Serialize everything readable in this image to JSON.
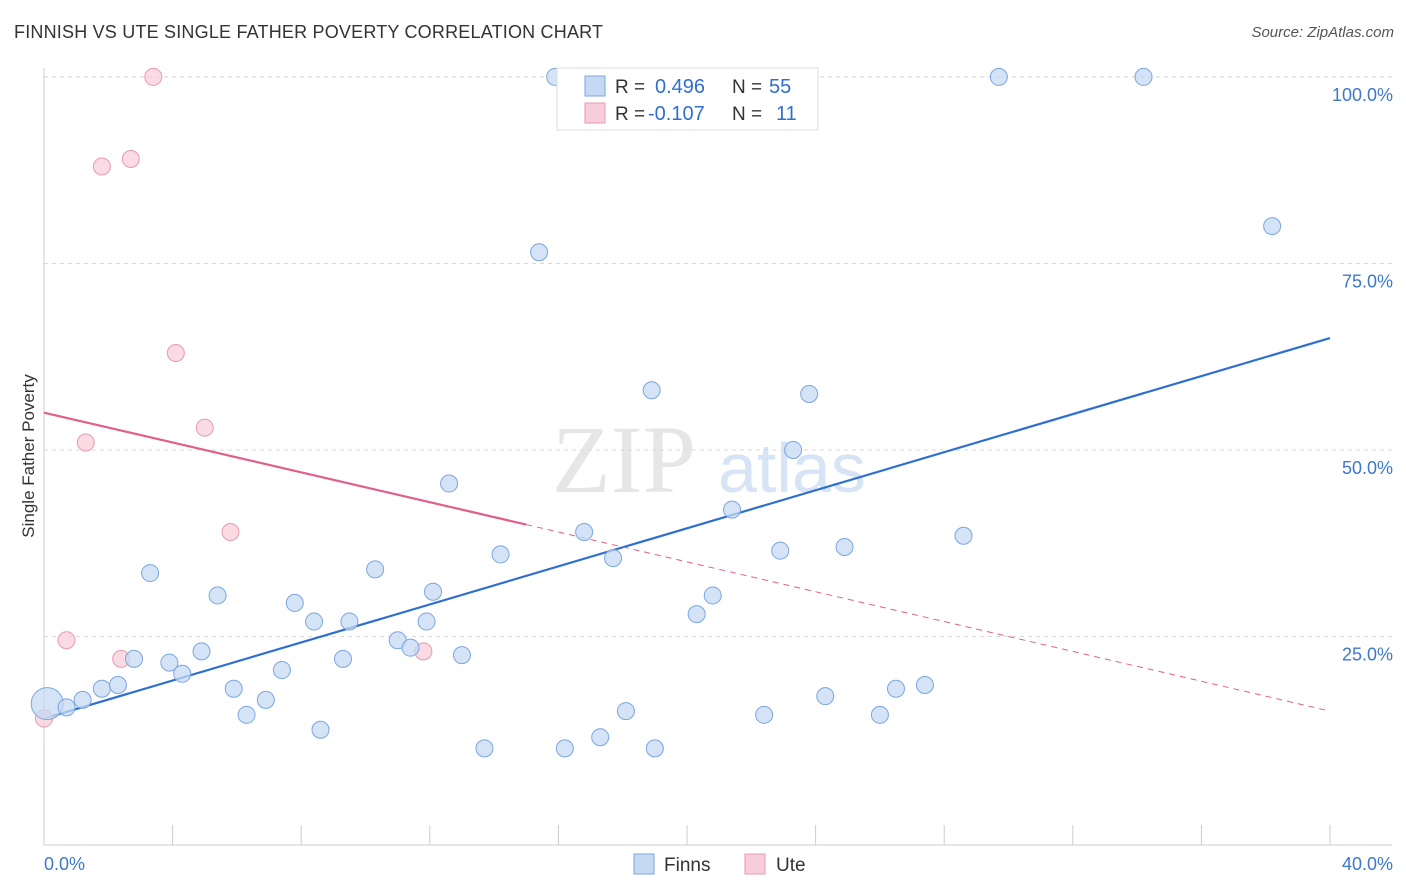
{
  "title": "FINNISH VS UTE SINGLE FATHER POVERTY CORRELATION CHART",
  "source": "Source: ZipAtlas.com",
  "watermark": {
    "zip": "ZIP",
    "atlas": "atlas"
  },
  "colors": {
    "finns_fill": "#c5d9f3",
    "finns_stroke": "#7aa6e0",
    "finns_line": "#2f6fd0",
    "ute_fill": "#f8cdd9",
    "ute_stroke": "#e89ab2",
    "ute_line": "#e0608a",
    "tick_label": "#3d78c9",
    "grid": "#d9d9d9"
  },
  "legend": {
    "r_label": "R =",
    "n_label": "N =",
    "rows": [
      {
        "r": "0.496",
        "n": "55"
      },
      {
        "r": "-0.107",
        "n": "11"
      }
    ]
  },
  "chart_data": {
    "type": "scatter",
    "title": "FINNISH VS UTE SINGLE FATHER POVERTY CORRELATION CHART",
    "xlabel": "",
    "ylabel": "Single Father Poverty",
    "xlim": [
      0,
      40
    ],
    "ylim": [
      0,
      102
    ],
    "x_tick_labels": [
      "0.0%",
      "40.0%"
    ],
    "y_ticks": [
      25,
      50,
      75,
      100
    ],
    "y_tick_labels": [
      "25.0%",
      "50.0%",
      "75.0%",
      "100.0%"
    ],
    "grid": true,
    "legend_position": "top-center",
    "series": [
      {
        "name": "Finns",
        "points": [
          [
            0.1,
            16.0
          ],
          [
            0.7,
            15.5
          ],
          [
            1.2,
            16.5
          ],
          [
            1.8,
            18.0
          ],
          [
            2.3,
            18.5
          ],
          [
            2.8,
            22.0
          ],
          [
            3.3,
            33.5
          ],
          [
            3.9,
            21.5
          ],
          [
            4.3,
            20.0
          ],
          [
            4.9,
            23.0
          ],
          [
            5.4,
            30.5
          ],
          [
            5.9,
            18.0
          ],
          [
            6.3,
            14.5
          ],
          [
            6.9,
            16.5
          ],
          [
            7.4,
            20.5
          ],
          [
            7.8,
            29.5
          ],
          [
            8.4,
            27.0
          ],
          [
            8.6,
            12.5
          ],
          [
            9.5,
            27.0
          ],
          [
            9.3,
            22.0
          ],
          [
            10.3,
            34.0
          ],
          [
            11.0,
            24.5
          ],
          [
            11.4,
            23.5
          ],
          [
            11.9,
            27.0
          ],
          [
            12.1,
            31.0
          ],
          [
            12.6,
            45.5
          ],
          [
            13.0,
            22.5
          ],
          [
            13.7,
            10.0
          ],
          [
            14.2,
            36.0
          ],
          [
            15.4,
            76.5
          ],
          [
            15.9,
            100.0
          ],
          [
            16.2,
            10.0
          ],
          [
            16.8,
            39.0
          ],
          [
            17.3,
            11.5
          ],
          [
            17.7,
            35.5
          ],
          [
            18.1,
            15.0
          ],
          [
            18.9,
            58.0
          ],
          [
            19.0,
            10.0
          ],
          [
            20.3,
            28.0
          ],
          [
            20.8,
            30.5
          ],
          [
            21.4,
            42.0
          ],
          [
            21.9,
            100.0
          ],
          [
            22.4,
            14.5
          ],
          [
            22.9,
            36.5
          ],
          [
            23.3,
            50.0
          ],
          [
            23.8,
            57.5
          ],
          [
            24.3,
            17.0
          ],
          [
            24.9,
            37.0
          ],
          [
            26.0,
            14.5
          ],
          [
            26.5,
            18.0
          ],
          [
            27.4,
            18.5
          ],
          [
            28.6,
            38.5
          ],
          [
            29.7,
            100.0
          ],
          [
            34.2,
            100.0
          ],
          [
            38.2,
            80.0
          ]
        ],
        "trend": {
          "x": [
            0,
            40
          ],
          "y": [
            14.0,
            65.0
          ]
        }
      },
      {
        "name": "Ute",
        "points": [
          [
            3.4,
            100.0
          ],
          [
            2.7,
            89.0
          ],
          [
            1.8,
            88.0
          ],
          [
            4.1,
            63.0
          ],
          [
            5.0,
            53.0
          ],
          [
            1.3,
            51.0
          ],
          [
            5.8,
            39.0
          ],
          [
            0.7,
            24.5
          ],
          [
            2.4,
            22.0
          ],
          [
            11.8,
            23.0
          ],
          [
            0.0,
            14.0
          ]
        ],
        "trend": {
          "x": [
            0,
            15
          ],
          "y": [
            55.0,
            40.0
          ]
        },
        "trend_extension": {
          "x": [
            15,
            40
          ],
          "y": [
            40.0,
            15.0
          ]
        }
      }
    ]
  },
  "bottom_legend": [
    "Finns",
    "Ute"
  ]
}
